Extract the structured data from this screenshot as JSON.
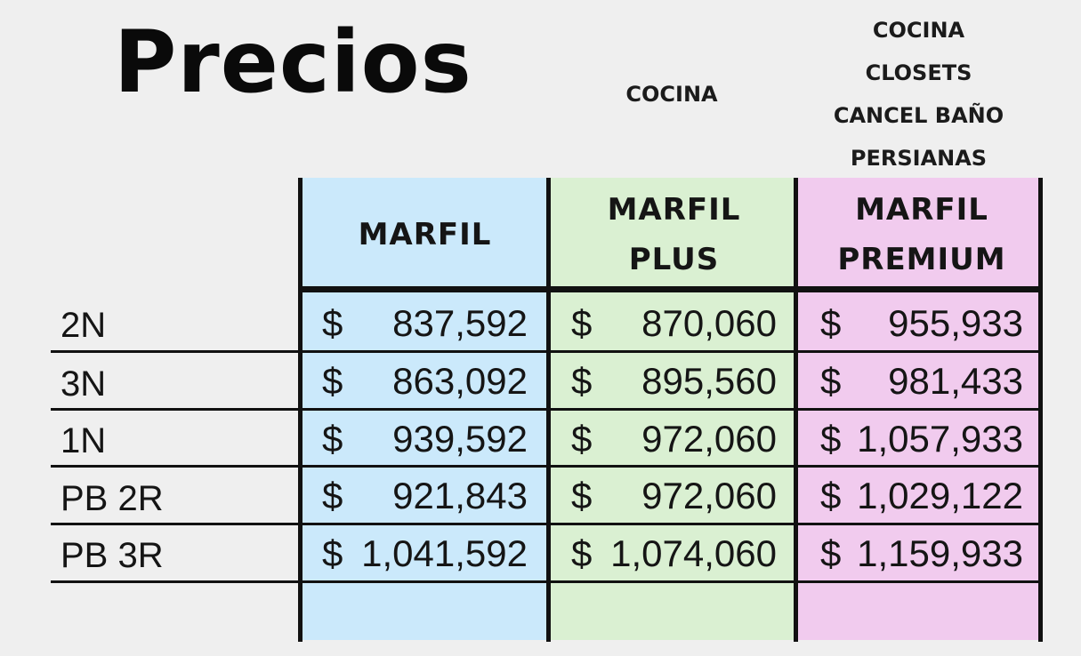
{
  "title": "Precios",
  "includes": {
    "plus": [
      "COCINA"
    ],
    "premium": [
      "COCINA",
      "CLOSETS",
      "CANCEL BAÑO",
      "PERSIANAS"
    ]
  },
  "columns": [
    {
      "lines": [
        "MARFIL"
      ],
      "color": "#cbe9fb"
    },
    {
      "lines": [
        "MARFIL",
        "PLUS"
      ],
      "color": "#daf0d2"
    },
    {
      "lines": [
        "MARFIL",
        "PREMIUM"
      ],
      "color": "#f1cbee"
    }
  ],
  "currency": "$",
  "rows": [
    {
      "label": "2N",
      "prices": [
        "837,592",
        "870,060",
        "955,933"
      ]
    },
    {
      "label": "3N",
      "prices": [
        "863,092",
        "895,560",
        "981,433"
      ]
    },
    {
      "label": "1N",
      "prices": [
        "939,592",
        "972,060",
        "1,057,933"
      ]
    },
    {
      "label": "PB 2R",
      "prices": [
        "921,843",
        "972,060",
        "1,029,122"
      ]
    },
    {
      "label": "PB 3R",
      "prices": [
        "1,041,592",
        "1,074,060",
        "1,159,933"
      ]
    }
  ]
}
